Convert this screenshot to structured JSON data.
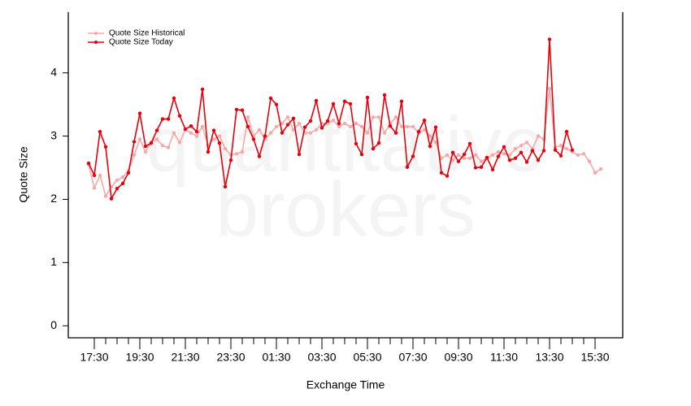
{
  "chart_data": {
    "type": "line",
    "watermark": [
      "quantitative",
      "brokers"
    ],
    "xlabel": "Exchange Time",
    "ylabel": "Quote Size",
    "categories": [
      null,
      "17:30",
      null,
      null,
      null,
      null,
      null,
      null,
      null,
      "19:30",
      null,
      null,
      null,
      null,
      null,
      null,
      null,
      "21:30",
      null,
      null,
      null,
      null,
      null,
      null,
      null,
      "23:30",
      null,
      null,
      null,
      null,
      null,
      null,
      null,
      "01:30",
      null,
      null,
      null,
      null,
      null,
      null,
      null,
      "03:30",
      null,
      null,
      null,
      null,
      null,
      null,
      null,
      "05:30",
      null,
      null,
      null,
      null,
      null,
      null,
      null,
      "07:30",
      null,
      null,
      null,
      null,
      null,
      null,
      null,
      "09:30",
      null,
      null,
      null,
      null,
      null,
      null,
      null,
      "11:30",
      null,
      null,
      null,
      null,
      null,
      null,
      null,
      "13:30",
      null,
      null,
      null,
      null,
      null,
      null,
      null,
      "15:30",
      null
    ],
    "ylim": [
      -0.19,
      4.96
    ],
    "yticks": [
      0,
      1,
      2,
      3,
      4
    ],
    "legend": "top-left",
    "series": [
      {
        "name": "Quote Size Historical",
        "color": "#f7a8a8",
        "values": [
          2.55,
          2.18,
          2.38,
          2.05,
          2.2,
          2.3,
          2.35,
          2.45,
          2.7,
          2.95,
          2.75,
          2.9,
          2.95,
          2.85,
          2.82,
          3.05,
          2.9,
          3.1,
          3.05,
          3.0,
          3.15,
          2.85,
          2.95,
          3.0,
          2.8,
          2.7,
          2.72,
          2.75,
          3.3,
          3.0,
          3.1,
          2.95,
          3.05,
          3.15,
          3.2,
          3.3,
          3.1,
          3.2,
          3.05,
          3.05,
          3.1,
          3.2,
          3.2,
          3.25,
          3.15,
          3.2,
          3.15,
          3.2,
          3.15,
          3.05,
          3.3,
          3.3,
          3.05,
          3.2,
          3.3,
          3.15,
          3.15,
          3.15,
          3.05,
          3.1,
          3.0,
          2.9,
          2.65,
          2.7,
          2.62,
          2.7,
          2.65,
          2.65,
          2.7,
          2.6,
          2.65,
          2.7,
          2.75,
          2.72,
          2.7,
          2.8,
          2.85,
          2.9,
          2.8,
          3.0,
          2.95,
          3.75,
          2.82,
          2.85,
          2.8,
          2.75,
          2.7,
          2.72,
          2.6,
          2.42,
          2.48
        ]
      },
      {
        "name": "Quote Size Today",
        "color": "#e8000b",
        "values": [
          2.57,
          2.38,
          3.07,
          2.83,
          2.01,
          2.17,
          2.25,
          2.42,
          2.91,
          3.36,
          2.84,
          2.89,
          3.09,
          3.27,
          3.27,
          3.6,
          3.32,
          3.11,
          3.16,
          3.07,
          3.74,
          2.75,
          3.09,
          2.89,
          2.2,
          2.62,
          3.42,
          3.41,
          3.15,
          2.95,
          2.68,
          3.0,
          3.6,
          3.5,
          3.05,
          3.18,
          3.28,
          2.71,
          3.14,
          3.24,
          3.56,
          3.13,
          3.24,
          3.51,
          3.2,
          3.55,
          3.51,
          2.88,
          2.71,
          3.61,
          2.8,
          2.89,
          3.65,
          3.16,
          3.05,
          3.55,
          2.51,
          2.68,
          3.07,
          3.25,
          2.84,
          3.14,
          2.42,
          2.37,
          2.74,
          2.6,
          2.71,
          2.88,
          2.5,
          2.51,
          2.66,
          2.47,
          2.68,
          2.83,
          2.62,
          2.65,
          2.74,
          2.59,
          2.77,
          2.62,
          2.77,
          4.53,
          2.78,
          2.69,
          3.07,
          2.78,
          null,
          null,
          null,
          null,
          null
        ]
      }
    ]
  }
}
